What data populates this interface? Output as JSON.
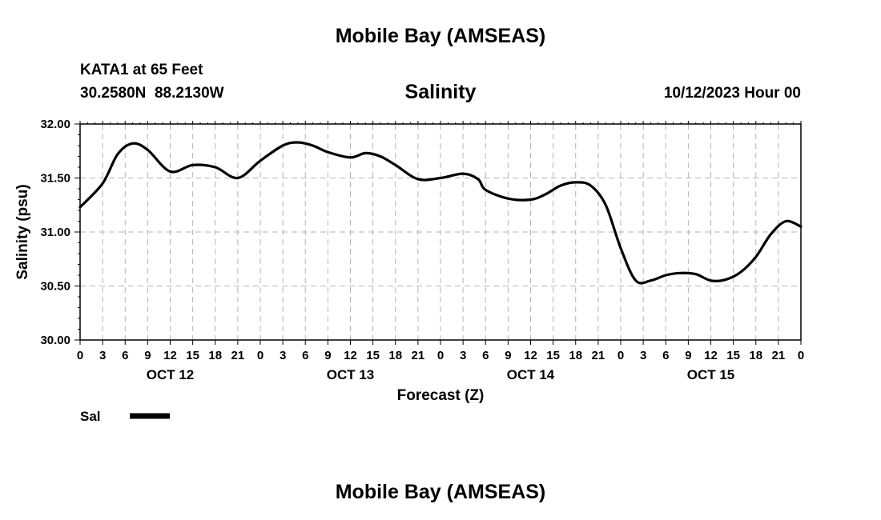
{
  "header": {
    "title": "Mobile Bay (AMSEAS)",
    "station": "KATA1 at 65 Feet",
    "coords": "30.2580N  88.2130W",
    "variable": "Salinity",
    "timestamp": "10/12/2023 Hour 00"
  },
  "footer": {
    "title": "Mobile Bay (AMSEAS)"
  },
  "chart_data": {
    "type": "line",
    "xlabel": "Forecast (Z)",
    "ylabel": "Salinity (psu)",
    "xlim": [
      0,
      96
    ],
    "ylim": [
      30.0,
      32.0
    ],
    "yticks": [
      "30.00",
      "30.50",
      "31.00",
      "31.50",
      "32.00"
    ],
    "xtick_step_hours": 3,
    "xtick_labels": [
      "0",
      "3",
      "6",
      "9",
      "12",
      "15",
      "18",
      "21",
      "0",
      "3",
      "6",
      "9",
      "12",
      "15",
      "18",
      "21",
      "0",
      "3",
      "6",
      "9",
      "12",
      "15",
      "18",
      "21",
      "0",
      "3",
      "6",
      "9",
      "12",
      "15",
      "18",
      "21",
      "0"
    ],
    "day_labels": [
      {
        "hour": 12,
        "label": "OCT 12"
      },
      {
        "hour": 36,
        "label": "OCT 13"
      },
      {
        "hour": 60,
        "label": "OCT 14"
      },
      {
        "hour": 84,
        "label": "OCT 15"
      }
    ],
    "grid": true,
    "legend_position": "bottom-left",
    "series": [
      {
        "name": "Sal",
        "color": "#000000",
        "x": [
          0,
          3,
          5,
          7,
          9,
          12,
          15,
          18,
          21,
          24,
          27,
          29,
          31,
          33,
          36,
          38,
          40,
          42,
          45,
          48,
          51,
          53,
          54,
          57,
          60,
          62,
          64,
          66,
          68,
          70,
          72,
          74,
          76,
          78,
          80,
          82,
          84,
          86,
          88,
          90,
          92,
          94,
          96
        ],
        "values": [
          31.23,
          31.45,
          31.72,
          31.82,
          31.76,
          31.56,
          31.62,
          31.6,
          31.5,
          31.66,
          31.8,
          31.83,
          31.8,
          31.74,
          31.69,
          31.73,
          31.7,
          31.62,
          31.49,
          31.5,
          31.54,
          31.49,
          31.39,
          31.31,
          31.3,
          31.35,
          31.43,
          31.46,
          31.43,
          31.25,
          30.85,
          30.55,
          30.55,
          30.6,
          30.62,
          30.61,
          30.55,
          30.56,
          30.63,
          30.77,
          30.98,
          31.1,
          31.05
        ]
      }
    ]
  }
}
